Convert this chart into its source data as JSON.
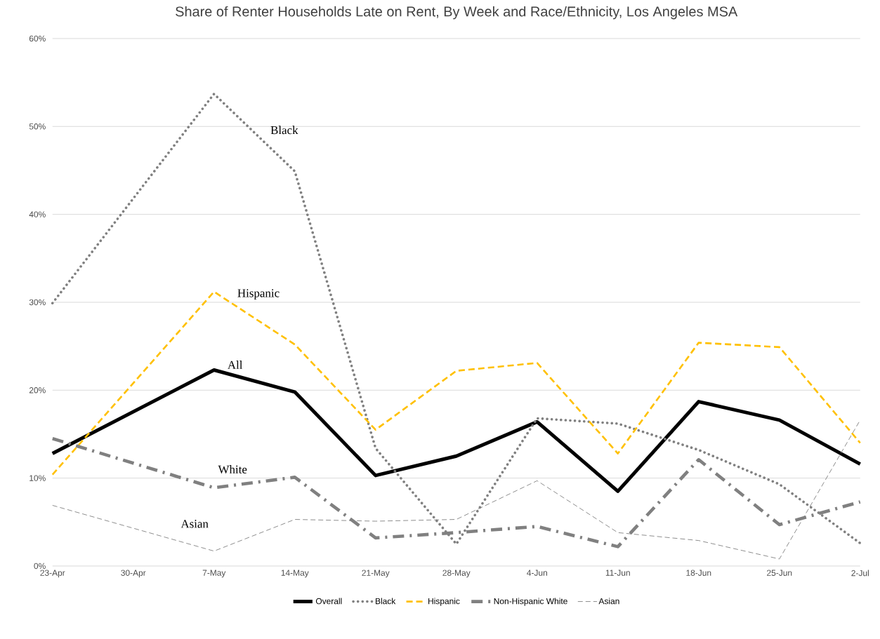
{
  "chart_data": {
    "type": "line",
    "title": "Share of Renter Households Late on  Rent, By Week and Race/Ethnicity, Los Angeles MSA",
    "categories": [
      "23-Apr",
      "30-Apr",
      "7-May",
      "14-May",
      "21-May",
      "28-May",
      "4-Jun",
      "11-Jun",
      "18-Jun",
      "25-Jun",
      "2-Jul"
    ],
    "series": [
      {
        "name": "Overall",
        "color": "#000000",
        "line_style": "solid",
        "values": [
          12.8,
          null,
          22.3,
          19.8,
          10.3,
          12.5,
          16.4,
          8.5,
          18.7,
          16.6,
          11.6
        ]
      },
      {
        "name": "Black",
        "color": "#808080",
        "line_style": "dotted",
        "values": [
          29.9,
          null,
          53.7,
          44.9,
          13.4,
          2.5,
          16.8,
          16.2,
          13.2,
          9.3,
          2.6
        ]
      },
      {
        "name": "Hispanic",
        "color": "#ffc000",
        "line_style": "dashed",
        "values": [
          10.4,
          null,
          31.2,
          25.2,
          15.5,
          22.2,
          23.1,
          12.8,
          25.4,
          24.9,
          14.0
        ]
      },
      {
        "name": "Non-Hispanic White",
        "color": "#808080",
        "line_style": "dashdot",
        "values": [
          14.5,
          null,
          8.9,
          10.1,
          3.2,
          3.8,
          4.5,
          2.2,
          12.1,
          4.7,
          7.3
        ]
      },
      {
        "name": "Asian",
        "color": "#808080",
        "line_style": "dashed",
        "values": [
          6.9,
          null,
          1.7,
          5.3,
          5.1,
          5.3,
          9.7,
          3.8,
          2.9,
          0.8,
          16.6
        ]
      }
    ],
    "ylim": [
      0,
      60
    ],
    "yticks": [
      {
        "value": 0,
        "label": "0%"
      },
      {
        "value": 10,
        "label": "10%"
      },
      {
        "value": 20,
        "label": "20%"
      },
      {
        "value": 30,
        "label": "30%"
      },
      {
        "value": 40,
        "label": "40%"
      },
      {
        "value": 50,
        "label": "50%"
      },
      {
        "value": 60,
        "label": "60%"
      }
    ],
    "grid": "y",
    "legend": "bottom",
    "marker": "none",
    "annotations": [
      "Black",
      "Hispanic",
      "All",
      "White",
      "Asian"
    ]
  }
}
